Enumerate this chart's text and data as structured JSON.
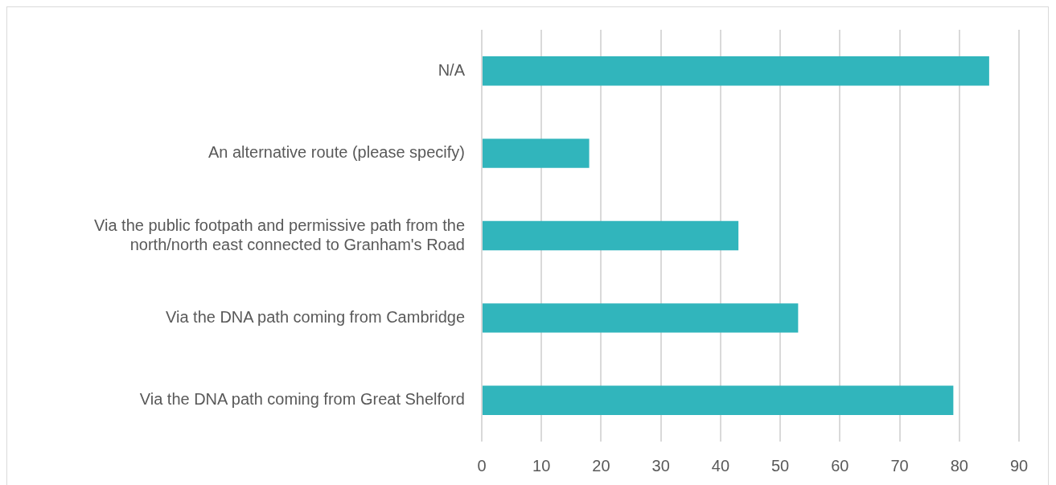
{
  "chart_data": {
    "type": "bar",
    "orientation": "horizontal",
    "categories": [
      "N/A",
      "An alternative route (please specify)",
      "Via the public footpath and permissive path from the north/north east connected to Granham's Road",
      "Via the DNA path coming from Cambridge",
      "Via the DNA path coming from Great Shelford"
    ],
    "values": [
      85,
      18,
      43,
      53,
      79
    ],
    "color": "#31b5bc",
    "xlim": [
      0,
      90
    ],
    "xticks": [
      0,
      10,
      20,
      30,
      40,
      50,
      60,
      70,
      80,
      90
    ],
    "grid": "x"
  }
}
